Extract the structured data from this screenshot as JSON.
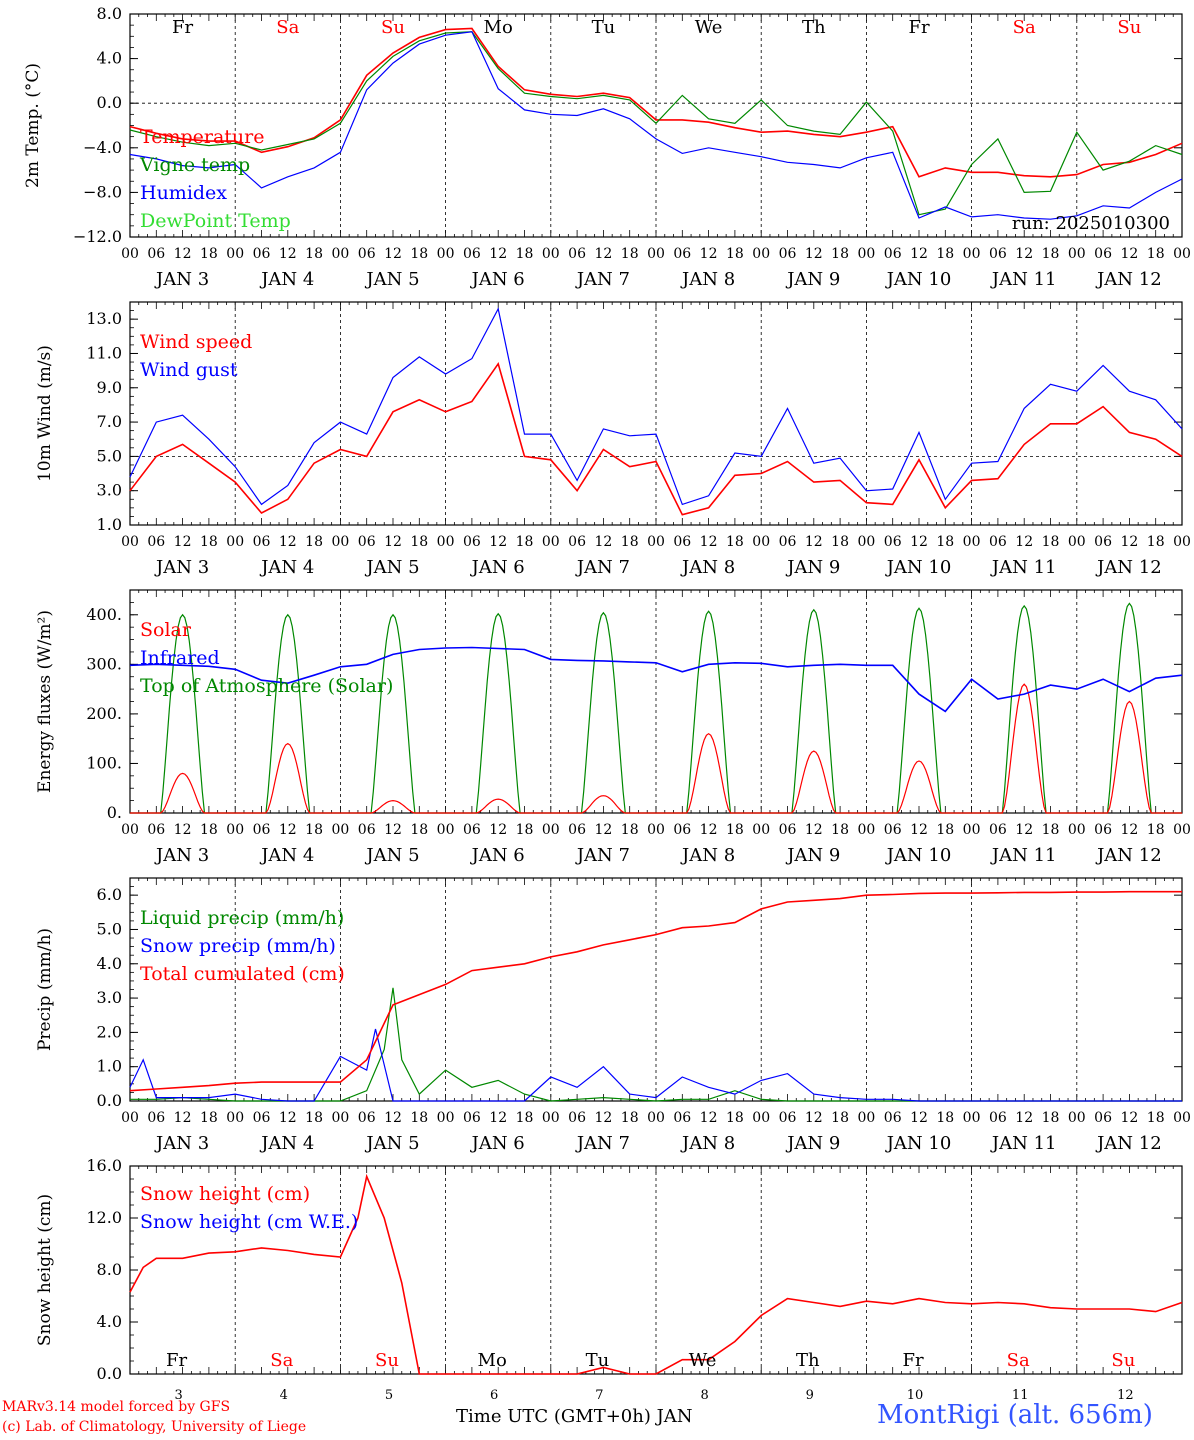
{
  "footer": {
    "credit_line1": "MARv3.14 model forced by GFS",
    "credit_line2": "(c) Lab. of Climatology, University of Liege",
    "xaxis_label": "Time UTC (GMT+0h) JAN",
    "station": "MontRigi (alt. 656m)"
  },
  "run_label": "run: 2025010300",
  "days": [
    "Fr",
    "Sa",
    "Su",
    "Mo",
    "Tu",
    "We",
    "Th",
    "Fr",
    "Sa",
    "Su"
  ],
  "day_dates": [
    "JAN  3",
    "JAN  4",
    "JAN  5",
    "JAN  6",
    "JAN  7",
    "JAN  8",
    "JAN  9",
    "JAN 10",
    "JAN 11",
    "JAN 12"
  ],
  "bottom_day_numbers": [
    "3",
    "4",
    "5",
    "6",
    "7",
    "8",
    "9",
    "10",
    "11",
    "12"
  ],
  "hour_ticks": [
    "00",
    "06",
    "12",
    "18"
  ],
  "colors": {
    "black": "#000000",
    "weekend": "#ff0000",
    "red": "#ff0000",
    "green": "#008800",
    "blue": "#0000ff",
    "lime": "#33dd33",
    "station": "#3355ff"
  },
  "chart_data": [
    {
      "type": "line",
      "id": "temp",
      "ylabel": "2m Temp. (°C)",
      "ylim": [
        -12,
        8
      ],
      "yticks": [
        "8.0",
        "4.0",
        "0.0",
        "−4.0",
        "−8.0",
        "−12.0"
      ],
      "ytick_values": [
        8,
        4,
        0,
        -4,
        -8,
        -12
      ],
      "ref_line": 0,
      "x_hours": [
        0,
        240
      ],
      "series": [
        {
          "name": "Temperature",
          "color": "red",
          "x": [
            0,
            6,
            12,
            18,
            24,
            30,
            36,
            42,
            48,
            54,
            60,
            66,
            72,
            78,
            84,
            90,
            96,
            102,
            108,
            114,
            120,
            126,
            132,
            138,
            144,
            150,
            156,
            162,
            168,
            174,
            180,
            186,
            192,
            198,
            204,
            210,
            216,
            222,
            228,
            234,
            240
          ],
          "y": [
            -2.1,
            -2.7,
            -3.2,
            -3.4,
            -3.4,
            -4.4,
            -3.9,
            -3.1,
            -1.5,
            2.5,
            4.5,
            5.9,
            6.6,
            6.7,
            3.3,
            1.2,
            0.8,
            0.6,
            0.9,
            0.5,
            -1.5,
            -1.5,
            -1.7,
            -2.2,
            -2.6,
            -2.5,
            -2.8,
            -3.0,
            -2.6,
            -2.1,
            -6.6,
            -5.8,
            -6.2,
            -6.2,
            -6.5,
            -6.6,
            -6.4,
            -5.5,
            -5.3,
            -4.6,
            -3.6
          ]
        },
        {
          "name": "Vigne temp",
          "color": "green",
          "x": [
            0,
            6,
            12,
            18,
            24,
            30,
            36,
            42,
            48,
            54,
            60,
            66,
            72,
            78,
            84,
            90,
            96,
            102,
            108,
            114,
            120,
            126,
            132,
            138,
            144,
            150,
            156,
            162,
            168,
            174,
            180,
            186,
            192,
            198,
            204,
            210,
            216,
            222,
            228,
            234,
            240
          ],
          "y": [
            -2.4,
            -3.0,
            -3.5,
            -3.8,
            -3.6,
            -4.2,
            -3.7,
            -3.2,
            -1.8,
            2.0,
            4.2,
            5.6,
            6.3,
            6.4,
            3.1,
            0.9,
            0.6,
            0.4,
            0.7,
            0.3,
            -1.8,
            0.7,
            -1.4,
            -1.8,
            0.3,
            -2.0,
            -2.5,
            -2.8,
            0.1,
            -2.5,
            -10.0,
            -9.5,
            -5.5,
            -3.2,
            -8.0,
            -7.9,
            -2.6,
            -6.0,
            -5.2,
            -3.8,
            -4.6
          ]
        },
        {
          "name": "Humidex",
          "color": "blue",
          "x": [
            0,
            6,
            12,
            18,
            24,
            30,
            36,
            42,
            48,
            54,
            60,
            66,
            72,
            78,
            84,
            90,
            96,
            102,
            108,
            114,
            120,
            126,
            132,
            138,
            144,
            150,
            156,
            162,
            168,
            174,
            180,
            186,
            192,
            198,
            204,
            210,
            216,
            222,
            228,
            234,
            240
          ],
          "y": [
            -4.6,
            -5.0,
            -5.6,
            -5.8,
            -5.5,
            -7.6,
            -6.6,
            -5.8,
            -4.4,
            1.2,
            3.6,
            5.3,
            6.1,
            6.4,
            1.3,
            -0.6,
            -1.0,
            -1.1,
            -0.5,
            -1.4,
            -3.2,
            -4.5,
            -4.0,
            -4.4,
            -4.8,
            -5.3,
            -5.5,
            -5.8,
            -4.9,
            -4.4,
            -10.3,
            -9.3,
            -10.2,
            -10.0,
            -10.3,
            -10.4,
            -10.1,
            -9.2,
            -9.4,
            -8.0,
            -6.8
          ]
        },
        {
          "name": "DewPoint Temp",
          "color": "lime",
          "x": [],
          "y": []
        }
      ]
    },
    {
      "type": "line",
      "id": "wind",
      "ylabel": "10m Wind (m/s)",
      "ylim": [
        1,
        14
      ],
      "yticks": [
        "13.0",
        "11.0",
        "9.0",
        "7.0",
        "5.0",
        "3.0",
        "1.0"
      ],
      "ytick_values": [
        13,
        11,
        9,
        7,
        5,
        3,
        1
      ],
      "ref_line": 5,
      "x_hours": [
        0,
        240
      ],
      "series": [
        {
          "name": "Wind speed",
          "color": "red",
          "x": [
            0,
            6,
            12,
            18,
            24,
            30,
            36,
            42,
            48,
            54,
            60,
            66,
            72,
            78,
            84,
            90,
            96,
            102,
            108,
            114,
            120,
            126,
            132,
            138,
            144,
            150,
            156,
            162,
            168,
            174,
            180,
            186,
            192,
            198,
            204,
            210,
            216,
            222,
            228,
            234,
            240
          ],
          "y": [
            3.0,
            5.0,
            5.7,
            4.6,
            3.5,
            1.7,
            2.5,
            4.6,
            5.4,
            5.0,
            7.6,
            8.3,
            7.6,
            8.2,
            10.4,
            5.0,
            4.8,
            3.0,
            5.4,
            4.4,
            4.7,
            1.6,
            2.0,
            3.9,
            4.0,
            4.7,
            3.5,
            3.6,
            2.3,
            2.2,
            4.8,
            2.0,
            3.6,
            3.7,
            5.7,
            6.9,
            6.9,
            7.9,
            6.4,
            6.0,
            5.0
          ]
        },
        {
          "name": "Wind gust",
          "color": "blue",
          "x": [
            0,
            6,
            12,
            18,
            24,
            30,
            36,
            42,
            48,
            54,
            60,
            66,
            72,
            78,
            84,
            90,
            96,
            102,
            108,
            114,
            120,
            126,
            132,
            138,
            144,
            150,
            156,
            162,
            168,
            174,
            180,
            186,
            192,
            198,
            204,
            210,
            216,
            222,
            228,
            234,
            240
          ],
          "y": [
            3.8,
            7.0,
            7.4,
            6.0,
            4.4,
            2.2,
            3.3,
            5.8,
            7.0,
            6.3,
            9.6,
            10.8,
            9.8,
            10.7,
            13.6,
            6.3,
            6.3,
            3.6,
            6.6,
            6.2,
            6.3,
            2.2,
            2.7,
            5.2,
            5.0,
            7.8,
            4.6,
            4.9,
            3.0,
            3.1,
            6.4,
            2.5,
            4.6,
            4.7,
            7.8,
            9.2,
            8.8,
            10.3,
            8.8,
            8.3,
            6.6
          ]
        }
      ]
    },
    {
      "type": "line",
      "id": "flux",
      "ylabel": "Energy fluxes (W/m²)",
      "ylim": [
        0,
        450
      ],
      "yticks": [
        "400.",
        "300.",
        "200.",
        "100.",
        "0."
      ],
      "ytick_values": [
        400,
        300,
        200,
        100,
        0
      ],
      "x_hours": [
        0,
        240
      ],
      "series": [
        {
          "name": "Solar",
          "color": "red",
          "x": [],
          "y": [],
          "daily_peaks": [
            80,
            140,
            25,
            28,
            35,
            160,
            125,
            105,
            260,
            225
          ]
        },
        {
          "name": "Infrared",
          "color": "blue",
          "x": [
            0,
            6,
            12,
            18,
            24,
            30,
            36,
            42,
            48,
            54,
            60,
            66,
            72,
            78,
            84,
            90,
            96,
            102,
            108,
            114,
            120,
            126,
            132,
            138,
            144,
            150,
            156,
            162,
            168,
            174,
            180,
            186,
            192,
            198,
            204,
            210,
            216,
            222,
            228,
            234,
            240
          ],
          "y": [
            298,
            300,
            298,
            296,
            290,
            268,
            262,
            278,
            295,
            300,
            320,
            330,
            333,
            334,
            332,
            330,
            310,
            308,
            307,
            305,
            303,
            285,
            300,
            303,
            302,
            295,
            298,
            300,
            298,
            298,
            240,
            205,
            270,
            230,
            240,
            258,
            250,
            270,
            245,
            272,
            278
          ]
        },
        {
          "name": "Top of Atmosphere (Solar)",
          "color": "green",
          "x": [],
          "y": [],
          "daily_peaks": [
            400,
            400,
            400,
            402,
            404,
            407,
            410,
            413,
            418,
            423
          ]
        }
      ]
    },
    {
      "type": "line",
      "id": "precip",
      "ylabel": "Precip (mm/h)",
      "ylim": [
        0,
        6.5
      ],
      "yticks": [
        "6.0",
        "5.0",
        "4.0",
        "3.0",
        "2.0",
        "1.0",
        "0.0"
      ],
      "ytick_values": [
        6,
        5,
        4,
        3,
        2,
        1,
        0
      ],
      "x_hours": [
        0,
        240
      ],
      "series": [
        {
          "name": "Liquid precip (mm/h)",
          "color": "green",
          "x": [
            0,
            6,
            12,
            18,
            24,
            30,
            36,
            42,
            48,
            54,
            58,
            60,
            62,
            66,
            72,
            78,
            84,
            90,
            96,
            102,
            108,
            114,
            120,
            126,
            132,
            138,
            144,
            150,
            156,
            162,
            168,
            174,
            180,
            186,
            192,
            198,
            204,
            210,
            216,
            222,
            228,
            234,
            240
          ],
          "y": [
            0.05,
            0.05,
            0.1,
            0.05,
            0,
            0,
            0,
            0,
            0,
            0.3,
            1.5,
            3.3,
            1.2,
            0.2,
            0.9,
            0.4,
            0.6,
            0.2,
            0,
            0.05,
            0.1,
            0.05,
            0,
            0.05,
            0.05,
            0.3,
            0.05,
            0,
            0,
            0,
            0,
            0,
            0,
            0,
            0,
            0,
            0,
            0,
            0,
            0,
            0,
            0,
            0
          ]
        },
        {
          "name": "Snow precip (mm/h)",
          "color": "blue",
          "x": [
            0,
            3,
            6,
            12,
            18,
            24,
            30,
            36,
            42,
            48,
            54,
            56,
            60,
            66,
            72,
            78,
            84,
            90,
            96,
            102,
            108,
            114,
            120,
            126,
            132,
            138,
            144,
            150,
            156,
            162,
            168,
            174,
            180,
            186,
            192,
            198,
            204,
            210,
            216,
            222,
            228,
            234,
            240
          ],
          "y": [
            0.4,
            1.2,
            0.1,
            0.1,
            0.1,
            0.2,
            0.05,
            0,
            0,
            1.3,
            0.9,
            2.1,
            0,
            0,
            0,
            0,
            0,
            0,
            0.7,
            0.4,
            1.0,
            0.2,
            0.1,
            0.7,
            0.4,
            0.2,
            0.6,
            0.8,
            0.2,
            0.1,
            0.05,
            0.05,
            0,
            0,
            0,
            0,
            0,
            0,
            0,
            0,
            0,
            0,
            0
          ]
        },
        {
          "name": "Total cumulated (cm)",
          "color": "red",
          "x": [
            0,
            6,
            12,
            18,
            24,
            30,
            36,
            42,
            48,
            54,
            60,
            66,
            72,
            78,
            84,
            90,
            96,
            102,
            108,
            114,
            120,
            126,
            132,
            138,
            144,
            150,
            156,
            162,
            168,
            174,
            180,
            186,
            192,
            198,
            204,
            210,
            216,
            222,
            228,
            234,
            240
          ],
          "y": [
            0.3,
            0.35,
            0.4,
            0.45,
            0.52,
            0.55,
            0.55,
            0.55,
            0.55,
            1.2,
            2.8,
            3.1,
            3.4,
            3.8,
            3.9,
            4.0,
            4.2,
            4.35,
            4.55,
            4.7,
            4.85,
            5.05,
            5.1,
            5.2,
            5.6,
            5.8,
            5.85,
            5.9,
            6.0,
            6.02,
            6.05,
            6.06,
            6.06,
            6.07,
            6.08,
            6.08,
            6.09,
            6.09,
            6.1,
            6.1,
            6.1
          ]
        }
      ]
    },
    {
      "type": "line",
      "id": "snow",
      "ylabel": "Snow height (cm)",
      "ylim": [
        0,
        16
      ],
      "yticks": [
        "16.0",
        "12.0",
        "8.0",
        "4.0",
        "0.0"
      ],
      "ytick_values": [
        16,
        12,
        8,
        4,
        0
      ],
      "x_hours": [
        0,
        240
      ],
      "series": [
        {
          "name": "Snow height (cm)",
          "color": "red",
          "x": [
            0,
            3,
            6,
            12,
            18,
            24,
            30,
            36,
            42,
            48,
            52,
            54,
            58,
            62,
            66,
            72,
            78,
            84,
            90,
            96,
            102,
            108,
            114,
            120,
            126,
            132,
            138,
            144,
            150,
            156,
            162,
            168,
            174,
            180,
            186,
            192,
            198,
            204,
            210,
            216,
            222,
            228,
            234,
            240
          ],
          "y": [
            6.3,
            8.2,
            8.9,
            8.9,
            9.3,
            9.4,
            9.7,
            9.5,
            9.2,
            9.0,
            12,
            15.2,
            12,
            7,
            0,
            0,
            0,
            0,
            0,
            0,
            0,
            0.5,
            0,
            0,
            1.1,
            1.1,
            2.5,
            4.5,
            5.8,
            5.5,
            5.2,
            5.6,
            5.4,
            5.8,
            5.5,
            5.4,
            5.5,
            5.4,
            5.1,
            5.0,
            5.0,
            5.0,
            4.8,
            5.5
          ]
        },
        {
          "name": "Snow height (cm W.E.)",
          "color": "blue",
          "x": [],
          "y": []
        }
      ]
    }
  ]
}
